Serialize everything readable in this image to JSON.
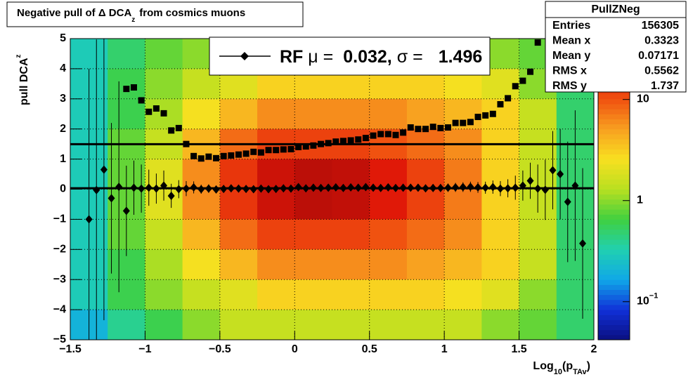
{
  "chart_data": {
    "type": "profile",
    "title": {
      "main": "Negative pull of Δ DCA",
      "sub": "z",
      "rest": "from cosmics muons"
    },
    "x_label": {
      "main": "Log",
      "sub": "10",
      "mid": "(p",
      "sub2": "TAv",
      "end": ")"
    },
    "y_label": {
      "main": "pull DCA",
      "sub": "z"
    },
    "xlim": [
      -1.5,
      2
    ],
    "ylim": [
      -5,
      5
    ],
    "xticks": [
      {
        "value": -1.5,
        "label": "−1.5"
      },
      {
        "value": -1,
        "label": "−1"
      },
      {
        "value": -0.5,
        "label": "−0.5"
      },
      0,
      0.5,
      1,
      1.5,
      2
    ],
    "yticks": [
      {
        "value": -5,
        "label": "−5"
      },
      {
        "value": -4,
        "label": "−4"
      },
      {
        "value": -3,
        "label": "−3"
      },
      {
        "value": -2,
        "label": "−2"
      },
      {
        "value": -1,
        "label": "−1"
      },
      0,
      1,
      2,
      3,
      4,
      5
    ],
    "grid": true,
    "heatmap": {
      "x_edges": [
        -1.5,
        -1.25,
        -1,
        -0.75,
        -0.5,
        -0.25,
        0,
        0.25,
        0.5,
        0.75,
        1,
        1.25,
        1.5,
        1.75,
        2
      ],
      "y_edges": [
        5,
        4,
        3,
        2,
        1,
        0,
        -1,
        -2,
        -3,
        -4,
        -5
      ],
      "counts": [
        [
          0.3,
          0.5,
          0.8,
          1,
          1.5,
          1.5,
          1.5,
          1.5,
          1.5,
          1.5,
          1.5,
          1,
          0.8,
          0.5
        ],
        [
          0.3,
          0.6,
          1,
          1.5,
          2,
          3,
          3,
          3,
          3,
          3,
          2.5,
          2,
          1,
          0.5
        ],
        [
          0.3,
          0.6,
          1.2,
          2.5,
          4,
          6,
          6,
          6,
          6,
          5,
          4,
          3,
          1.5,
          0.5
        ],
        [
          0.3,
          0.8,
          1.5,
          4,
          8,
          12,
          12,
          12,
          10,
          8,
          6,
          3,
          1.5,
          0.5
        ],
        [
          0.3,
          0.8,
          2,
          6,
          14,
          25,
          30,
          28,
          20,
          12,
          7,
          3,
          1.5,
          0.5
        ],
        [
          0.3,
          0.8,
          2,
          6,
          14,
          25,
          30,
          28,
          20,
          12,
          7,
          3,
          1.5,
          0.5
        ],
        [
          0.3,
          0.8,
          1.5,
          4,
          8,
          12,
          12,
          12,
          10,
          8,
          6,
          3,
          1.5,
          0.5
        ],
        [
          0.3,
          0.6,
          1.2,
          2.5,
          4,
          6,
          6,
          6,
          6,
          5,
          4,
          3,
          1.5,
          0.5
        ],
        [
          0.3,
          0.6,
          1,
          1.5,
          2,
          3,
          3,
          3,
          3,
          3,
          2.5,
          2,
          1,
          0.5
        ],
        [
          0.2,
          0.4,
          0.6,
          1,
          1.5,
          1.5,
          1.5,
          1.5,
          1.5,
          1.5,
          1.5,
          1,
          0.8,
          0.5
        ]
      ],
      "zlim": [
        0.042,
        40
      ],
      "zticks": [
        {
          "value": 10,
          "label": "10"
        },
        {
          "value": 1,
          "label": "1"
        },
        {
          "value": 0.1,
          "label": "10",
          "exponent": "−1"
        }
      ],
      "log_z": true,
      "palette": [
        "#0a0f80",
        "#1030d8",
        "#10a8e8",
        "#20d0b0",
        "#40d040",
        "#b8e020",
        "#f8e020",
        "#f8a020",
        "#f05010",
        "#e01808",
        "#a00808"
      ]
    },
    "x": [
      -1.375,
      -1.325,
      -1.275,
      -1.225,
      -1.175,
      -1.125,
      -1.075,
      -1.025,
      -0.975,
      -0.925,
      -0.875,
      -0.825,
      -0.775,
      -0.725,
      -0.675,
      -0.625,
      -0.575,
      -0.525,
      -0.475,
      -0.425,
      -0.375,
      -0.325,
      -0.275,
      -0.225,
      -0.175,
      -0.125,
      -0.075,
      -0.025,
      0.025,
      0.075,
      0.125,
      0.175,
      0.225,
      0.275,
      0.325,
      0.375,
      0.425,
      0.475,
      0.525,
      0.575,
      0.625,
      0.675,
      0.725,
      0.775,
      0.825,
      0.875,
      0.925,
      0.975,
      1.025,
      1.075,
      1.125,
      1.175,
      1.225,
      1.275,
      1.325,
      1.375,
      1.425,
      1.475,
      1.525,
      1.575,
      1.625,
      1.675,
      1.725,
      1.775,
      1.825,
      1.875,
      1.925
    ],
    "series": [
      {
        "marker": "diamond",
        "color": "#000000",
        "values": [
          -1.0,
          -0.03,
          0.65,
          -0.3,
          0.08,
          -0.72,
          0.05,
          0.02,
          0.05,
          0.02,
          0.12,
          -0.22,
          0.0,
          0.02,
          0.06,
          0.0,
          0.02,
          -0.01,
          0.01,
          0.03,
          0.02,
          0.01,
          0.0,
          0.02,
          0.0,
          0.01,
          0.03,
          0.02,
          0.07,
          0.03,
          0.05,
          0.04,
          0.05,
          0.06,
          0.04,
          0.06,
          0.05,
          0.07,
          0.05,
          0.04,
          0.06,
          0.04,
          0.05,
          0.05,
          0.05,
          0.03,
          0.04,
          0.04,
          0.05,
          0.06,
          0.07,
          0.08,
          0.06,
          0.05,
          0.07,
          0.02,
          0.03,
          0.05,
          0.12,
          0.28,
          0.02,
          -0.02,
          0.63,
          0.5,
          -0.42,
          0.12,
          -1.8
        ],
        "errors": [
          5,
          5,
          5,
          2.5,
          3.5,
          1.5,
          0.9,
          0.8,
          0.6,
          0.5,
          0.5,
          0.4,
          0.3,
          0.25,
          0.2,
          0.15,
          0.14,
          0.13,
          0.12,
          0.11,
          0.1,
          0.1,
          0.09,
          0.09,
          0.08,
          0.08,
          0.08,
          0.08,
          0.08,
          0.08,
          0.08,
          0.08,
          0.08,
          0.08,
          0.08,
          0.08,
          0.09,
          0.09,
          0.09,
          0.1,
          0.1,
          0.1,
          0.11,
          0.11,
          0.12,
          0.12,
          0.13,
          0.13,
          0.14,
          0.15,
          0.16,
          0.17,
          0.18,
          0.2,
          0.22,
          0.25,
          0.3,
          0.4,
          0.5,
          0.6,
          0.8,
          1.0,
          1.3,
          1.5,
          2,
          2.5,
          2.5
        ]
      },
      {
        "marker": "square",
        "color": "#000000",
        "values": [
          null,
          null,
          null,
          null,
          null,
          3.33,
          3.38,
          2.95,
          2.57,
          2.68,
          2.52,
          1.95,
          2.03,
          1.5,
          1.1,
          1.02,
          1.08,
          1.03,
          1.1,
          1.12,
          1.15,
          1.18,
          1.24,
          1.22,
          1.3,
          1.3,
          1.32,
          1.33,
          1.4,
          1.42,
          1.45,
          1.5,
          1.53,
          1.58,
          1.6,
          1.62,
          1.65,
          1.7,
          1.78,
          1.83,
          1.83,
          1.8,
          1.88,
          2.05,
          2.0,
          2.0,
          2.07,
          2.03,
          2.05,
          2.2,
          2.2,
          2.23,
          2.4,
          2.45,
          2.5,
          2.82,
          3.02,
          3.42,
          3.6,
          3.9,
          4.87,
          null,
          null,
          null,
          null,
          null,
          null
        ]
      }
    ],
    "legend": {
      "label": "RF",
      "mu_symbol": "μ =",
      "mu": 0.032,
      "sep": ",",
      "sigma_symbol": "σ =",
      "sigma": 1.496
    },
    "stats": {
      "name": "PullZNeg",
      "rows": [
        [
          "Entries",
          156305
        ],
        [
          "Mean x",
          0.3323
        ],
        [
          "Mean y",
          0.07171
        ],
        [
          "RMS x",
          0.5562
        ],
        [
          "RMS y",
          1.737
        ]
      ]
    }
  }
}
